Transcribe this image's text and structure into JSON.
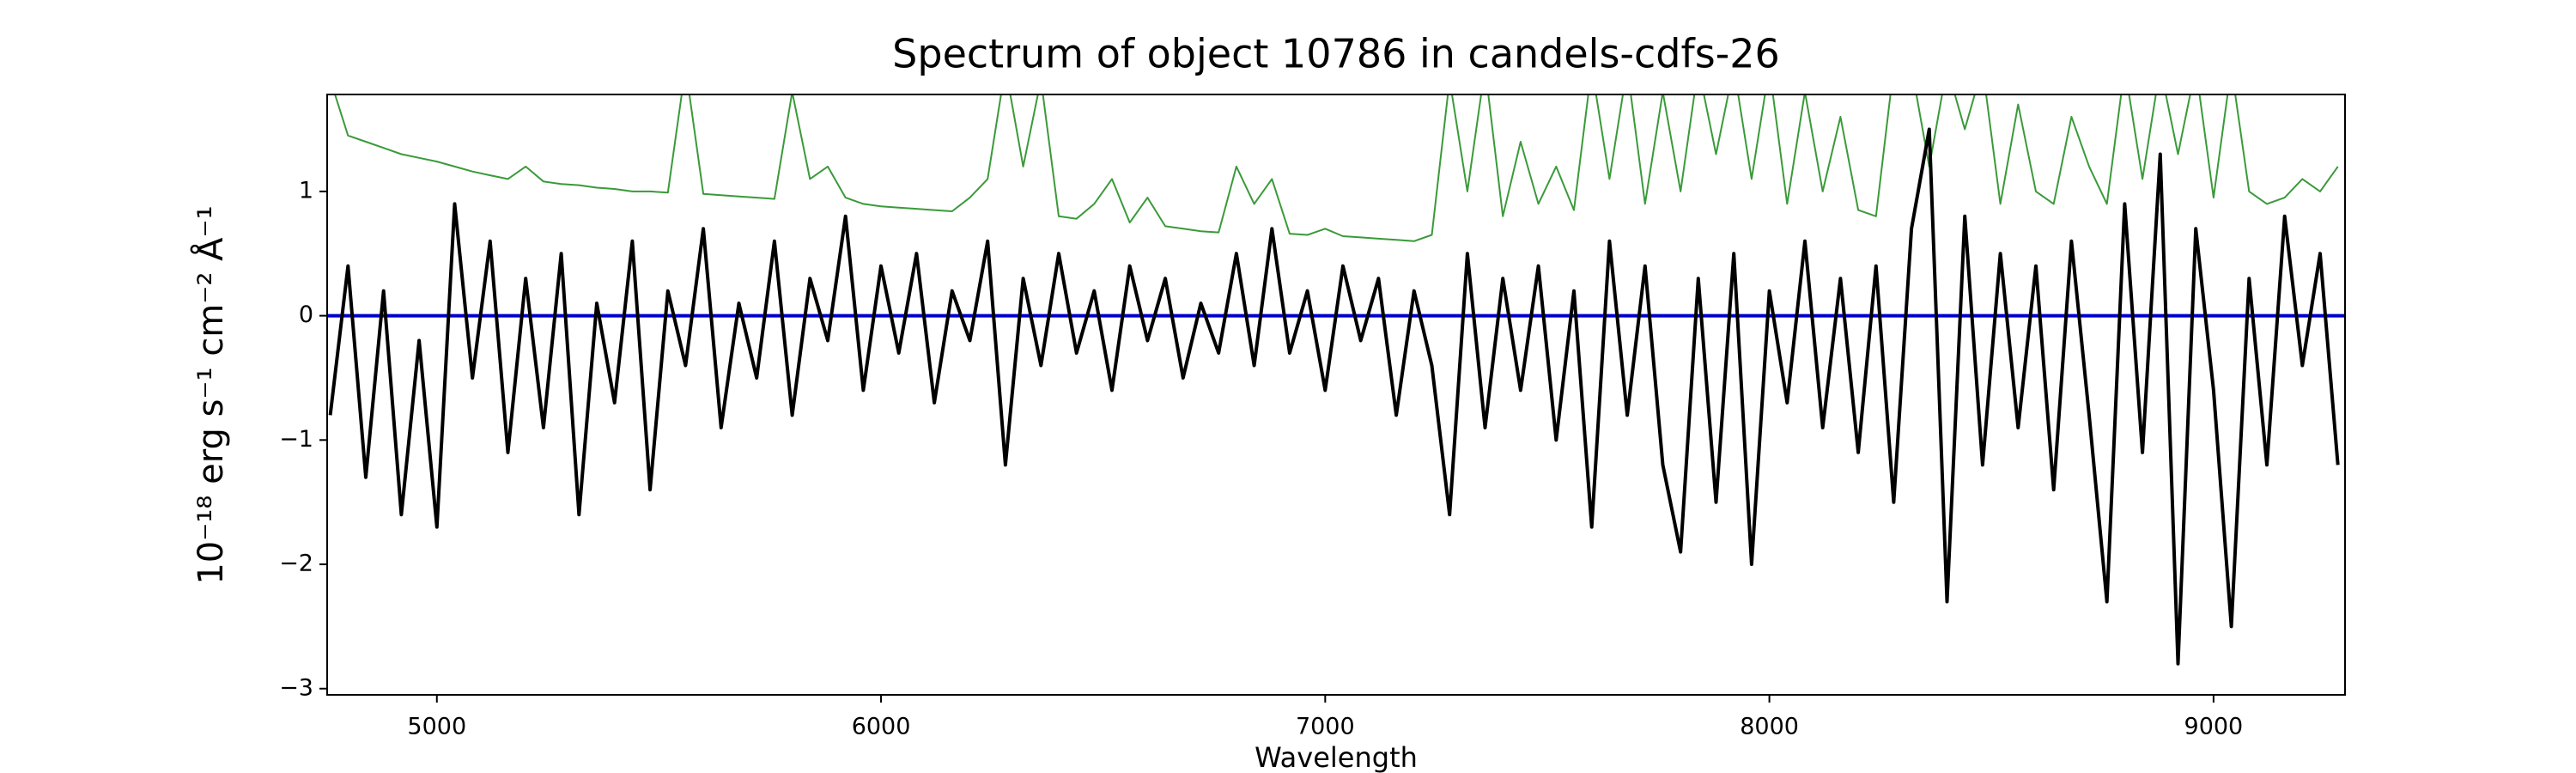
{
  "chart_data": {
    "type": "line",
    "title": "Spectrum of object 10786 in candels-cdfs-26",
    "xlabel": "Wavelength",
    "ylabel": "10⁻¹⁸ erg s⁻¹ cm⁻² Å⁻¹",
    "x": [
      4760,
      4800,
      4840,
      4880,
      4920,
      4960,
      5000,
      5040,
      5080,
      5120,
      5160,
      5200,
      5240,
      5280,
      5320,
      5360,
      5400,
      5440,
      5480,
      5520,
      5560,
      5600,
      5640,
      5680,
      5720,
      5760,
      5800,
      5840,
      5880,
      5920,
      5960,
      6000,
      6040,
      6080,
      6120,
      6160,
      6200,
      6240,
      6280,
      6320,
      6360,
      6400,
      6440,
      6480,
      6520,
      6560,
      6600,
      6640,
      6680,
      6720,
      6760,
      6800,
      6840,
      6880,
      6920,
      6960,
      7000,
      7040,
      7080,
      7120,
      7160,
      7200,
      7240,
      7280,
      7320,
      7360,
      7400,
      7440,
      7480,
      7520,
      7560,
      7600,
      7640,
      7680,
      7720,
      7760,
      7800,
      7840,
      7880,
      7920,
      7960,
      8000,
      8040,
      8080,
      8120,
      8160,
      8200,
      8240,
      8280,
      8320,
      8360,
      8400,
      8440,
      8480,
      8520,
      8560,
      8600,
      8640,
      8680,
      8720,
      8760,
      8800,
      8840,
      8880,
      8920,
      8960,
      9000,
      9040,
      9080,
      9120,
      9160,
      9200,
      9240,
      9280
    ],
    "series": [
      {
        "color": "#3a9a3a",
        "width": 2,
        "values": [
          1.9,
          1.45,
          1.4,
          1.35,
          1.3,
          1.27,
          1.24,
          1.2,
          1.16,
          1.13,
          1.1,
          1.2,
          1.08,
          1.06,
          1.05,
          1.03,
          1.02,
          1.0,
          1.0,
          0.99,
          2.0,
          0.98,
          0.97,
          0.96,
          0.95,
          0.94,
          1.8,
          1.1,
          1.2,
          0.95,
          0.9,
          0.88,
          0.87,
          0.86,
          0.85,
          0.84,
          0.95,
          1.1,
          2.0,
          1.2,
          1.9,
          0.8,
          0.78,
          0.9,
          1.1,
          0.75,
          0.95,
          0.72,
          0.7,
          0.68,
          0.67,
          1.2,
          0.9,
          1.1,
          0.66,
          0.65,
          0.7,
          0.64,
          0.63,
          0.62,
          0.61,
          0.6,
          0.65,
          1.9,
          1.0,
          2.0,
          0.8,
          1.4,
          0.9,
          1.2,
          0.85,
          2.0,
          1.1,
          2.0,
          0.9,
          1.8,
          1.0,
          2.0,
          1.3,
          2.0,
          1.1,
          2.0,
          0.9,
          1.8,
          1.0,
          1.6,
          0.85,
          0.8,
          2.0,
          2.0,
          1.2,
          2.0,
          1.5,
          2.0,
          0.9,
          1.7,
          1.0,
          0.9,
          1.6,
          1.2,
          0.9,
          2.0,
          1.1,
          2.0,
          1.3,
          2.0,
          0.95,
          2.0,
          1.0,
          0.9,
          0.95,
          1.1,
          1.0,
          1.2
        ]
      },
      {
        "color": "#000000",
        "width": 4,
        "values": [
          -0.8,
          0.4,
          -1.3,
          0.2,
          -1.6,
          -0.2,
          -1.7,
          0.9,
          -0.5,
          0.6,
          -1.1,
          0.3,
          -0.9,
          0.5,
          -1.6,
          0.1,
          -0.7,
          0.6,
          -1.4,
          0.2,
          -0.4,
          0.7,
          -0.9,
          0.1,
          -0.5,
          0.6,
          -0.8,
          0.3,
          -0.2,
          0.8,
          -0.6,
          0.4,
          -0.3,
          0.5,
          -0.7,
          0.2,
          -0.2,
          0.6,
          -1.2,
          0.3,
          -0.4,
          0.5,
          -0.3,
          0.2,
          -0.6,
          0.4,
          -0.2,
          0.3,
          -0.5,
          0.1,
          -0.3,
          0.5,
          -0.4,
          0.7,
          -0.3,
          0.2,
          -0.6,
          0.4,
          -0.2,
          0.3,
          -0.8,
          0.2,
          -0.4,
          -1.6,
          0.5,
          -0.9,
          0.3,
          -0.6,
          0.4,
          -1.0,
          0.2,
          -1.7,
          0.6,
          -0.8,
          0.4,
          -1.2,
          -1.9,
          0.3,
          -1.5,
          0.5,
          -2.0,
          0.2,
          -0.7,
          0.6,
          -0.9,
          0.3,
          -1.1,
          0.4,
          -1.5,
          0.7,
          1.5,
          -2.3,
          0.8,
          -1.2,
          0.5,
          -0.9,
          0.4,
          -1.4,
          0.6,
          -0.8,
          -2.3,
          0.9,
          -1.1,
          1.3,
          -2.8,
          0.7,
          -0.6,
          -2.5,
          0.3,
          -1.2,
          0.8,
          -0.4,
          0.5,
          -1.2
        ]
      }
    ],
    "reference_line": {
      "y": 0,
      "color": "#0000cc"
    },
    "xlim": [
      4753,
      9296
    ],
    "ylim": [
      -3.05,
      1.78
    ],
    "xticks": [
      5000,
      6000,
      7000,
      8000,
      9000
    ],
    "yticks": [
      {
        "value": -3,
        "label": "−3"
      },
      {
        "value": -2,
        "label": "−2"
      },
      {
        "value": -1,
        "label": "−1"
      },
      0,
      1
    ],
    "grid": false
  }
}
